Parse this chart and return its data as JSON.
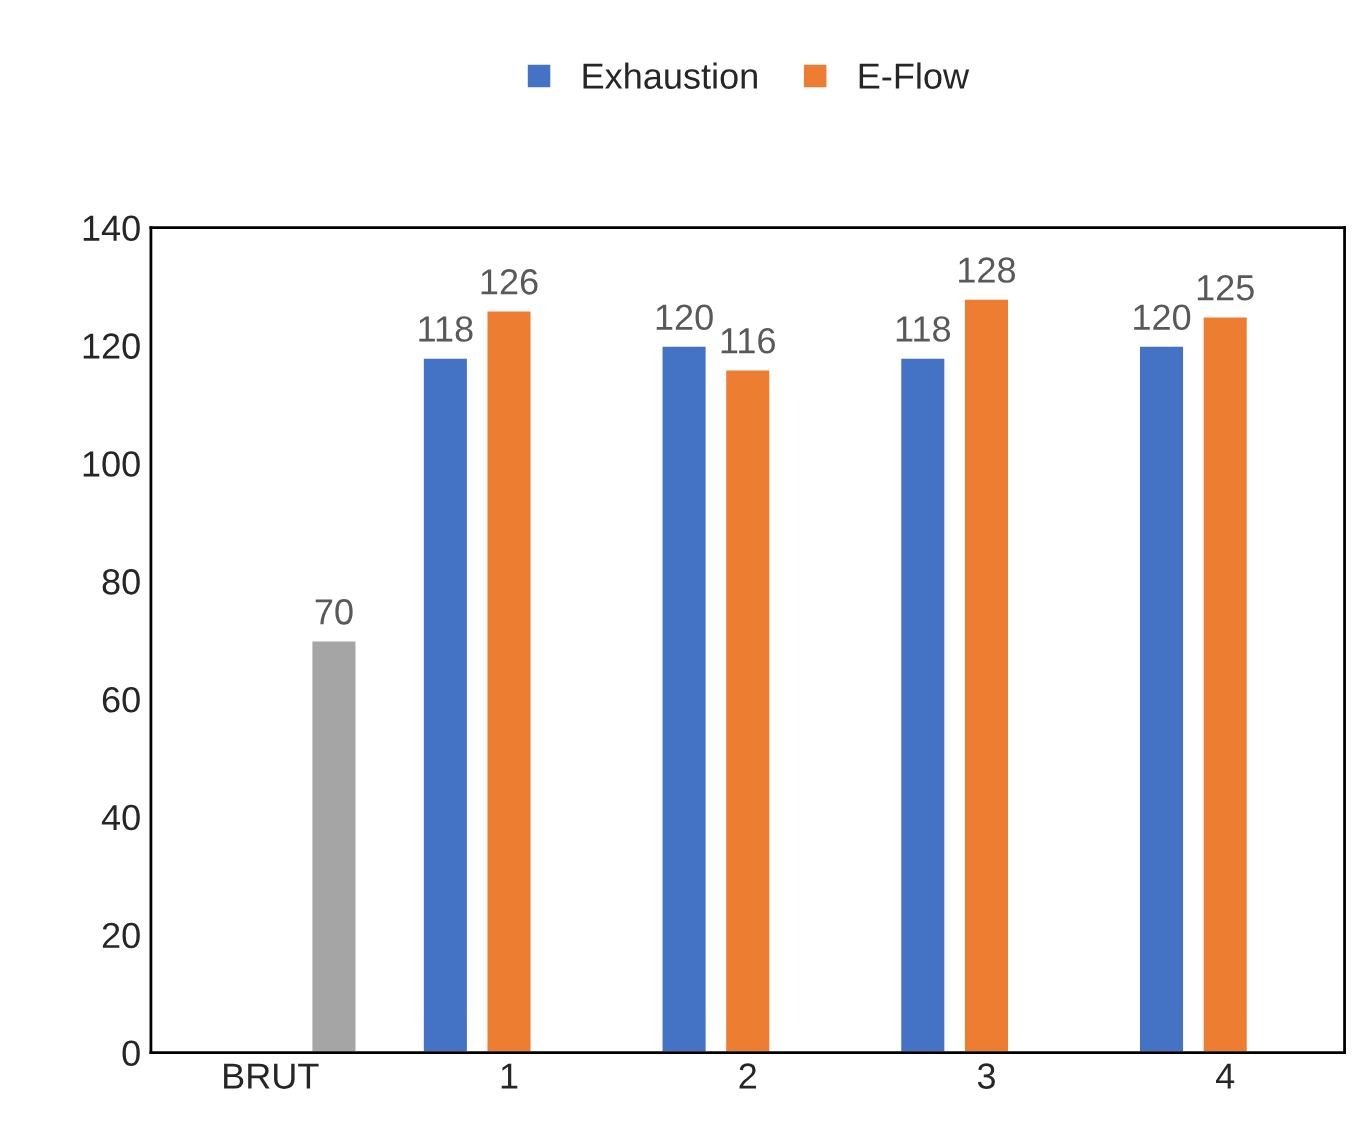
{
  "chart_data": {
    "type": "bar",
    "categories": [
      "BRUT",
      "1",
      "2",
      "3",
      "4"
    ],
    "series": [
      {
        "name": "Exhaustion",
        "color": "#4472c4",
        "values": [
          null,
          118,
          120,
          118,
          120
        ]
      },
      {
        "name": "E-Flow",
        "color": "#ed7d31",
        "values": [
          null,
          126,
          116,
          128,
          125
        ]
      },
      {
        "color": "#a5a5a5",
        "values": [
          70,
          null,
          null,
          null,
          null
        ]
      }
    ],
    "ylim": [
      0,
      140
    ],
    "yticks": [
      0,
      20,
      40,
      60,
      80,
      100,
      120,
      140
    ],
    "grid": false,
    "legend": "top",
    "data_labels": true
  }
}
